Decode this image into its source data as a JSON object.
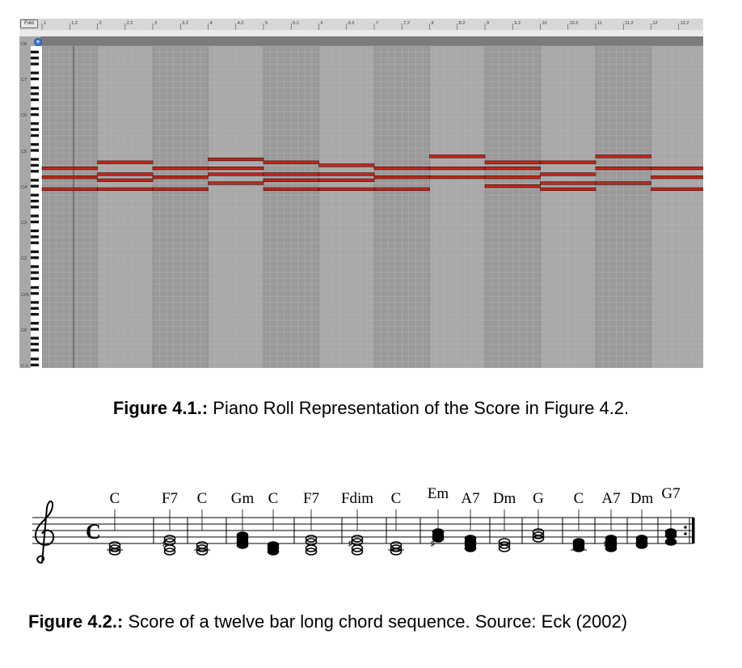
{
  "piano_roll": {
    "fold_label": "Fold",
    "ruler_labels": [
      "1",
      "1.2",
      "2",
      "2.2",
      "3",
      "3.2",
      "4",
      "4.2",
      "5",
      "5.2",
      "6",
      "6.2",
      "7",
      "7.2",
      "8",
      "8.2",
      "9",
      "9.2",
      "10",
      "10.2",
      "11",
      "11.2",
      "12",
      "12.2"
    ],
    "octave_labels": [
      "C8",
      "C7",
      "C6",
      "C5",
      "C4",
      "C3",
      "C2",
      "C#1",
      "C0",
      "C-1",
      "C-2"
    ],
    "note_color": "#c0271c",
    "pitch_range": [
      0,
      108
    ],
    "bars": [
      {
        "bar": 1,
        "notes": [
          60,
          64,
          67
        ]
      },
      {
        "bar": 2,
        "notes": [
          60,
          63,
          65,
          69
        ]
      },
      {
        "bar": 3,
        "notes": [
          60,
          64,
          67
        ]
      },
      {
        "bar": 4,
        "notes": [
          62,
          65,
          67,
          70
        ]
      },
      {
        "bar": 5,
        "notes": [
          60,
          63,
          65,
          69
        ]
      },
      {
        "bar": 6,
        "notes": [
          60,
          63,
          65,
          68
        ]
      },
      {
        "bar": 7,
        "notes": [
          60,
          64,
          67
        ]
      },
      {
        "bar": 8,
        "notes": [
          64,
          67,
          71
        ]
      },
      {
        "bar": 9,
        "notes": [
          61,
          64,
          67,
          69
        ]
      },
      {
        "bar": 10,
        "notes": [
          60,
          62,
          65,
          69
        ]
      },
      {
        "bar": 11,
        "notes": [
          62,
          67,
          71
        ]
      },
      {
        "bar": 12,
        "notes": [
          60,
          64,
          67
        ]
      }
    ]
  },
  "caption1": {
    "label": "Figure 4.1.:",
    "text": " Piano Roll Representation of the Score in Figure 4.2."
  },
  "score": {
    "time_signature": "C",
    "chords": [
      "C",
      "F7",
      "C",
      "Gm",
      "C",
      "F7",
      "Fdim",
      "C",
      "Em",
      "A7",
      "Dm",
      "G",
      "C",
      "A7",
      "Dm",
      "G7"
    ]
  },
  "caption2": {
    "label": "Figure 4.2.:",
    "text": " Score of a twelve bar long chord sequence. Source: Eck (2002)"
  }
}
